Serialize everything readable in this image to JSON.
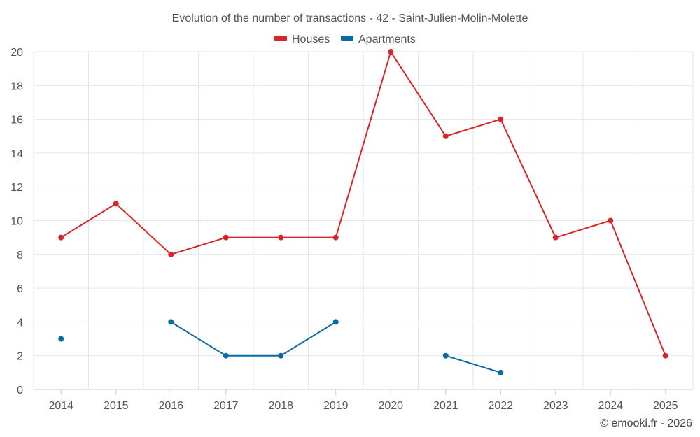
{
  "chart_data": {
    "type": "line",
    "title": "Evolution of the number of transactions - 42 - Saint-Julien-Molin-Molette",
    "xlabel": "",
    "ylabel": "",
    "categories": [
      "2014",
      "2015",
      "2016",
      "2017",
      "2018",
      "2019",
      "2020",
      "2021",
      "2022",
      "2023",
      "2024",
      "2025"
    ],
    "ylim": [
      0,
      20
    ],
    "yticks": [
      0,
      2,
      4,
      6,
      8,
      10,
      12,
      14,
      16,
      18,
      20
    ],
    "grid": true,
    "legend_position": "top-center",
    "series": [
      {
        "name": "Houses",
        "color": "#d62728",
        "values": [
          9,
          11,
          8,
          9,
          9,
          9,
          20,
          15,
          16,
          9,
          10,
          2
        ]
      },
      {
        "name": "Apartments",
        "color": "#0b6aa2",
        "values": [
          3,
          null,
          4,
          2,
          2,
          4,
          null,
          2,
          1,
          null,
          null,
          null
        ]
      }
    ]
  },
  "credit": "© emooki.fr - 2026"
}
